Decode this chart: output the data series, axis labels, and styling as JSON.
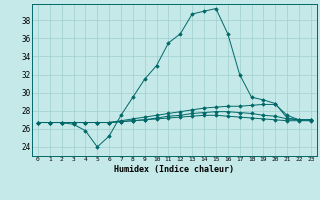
{
  "title": "",
  "xlabel": "Humidex (Indice chaleur)",
  "bg_color": "#c5e8e8",
  "grid_color": "#9fcfcf",
  "line_color": "#006868",
  "xlim": [
    -0.5,
    23.5
  ],
  "ylim": [
    23.0,
    39.8
  ],
  "yticks": [
    24,
    26,
    28,
    30,
    32,
    34,
    36,
    38
  ],
  "xticks": [
    0,
    1,
    2,
    3,
    4,
    5,
    6,
    7,
    8,
    9,
    10,
    11,
    12,
    13,
    14,
    15,
    16,
    17,
    18,
    19,
    20,
    21,
    22,
    23
  ],
  "series": [
    [
      26.7,
      26.7,
      26.7,
      26.5,
      25.8,
      24.0,
      25.2,
      27.5,
      29.5,
      31.5,
      33.0,
      35.5,
      36.5,
      38.7,
      39.0,
      39.3,
      36.5,
      32.0,
      29.5,
      29.2,
      28.8,
      27.2,
      27.0,
      27.0
    ],
    [
      26.7,
      26.7,
      26.7,
      26.7,
      26.7,
      26.7,
      26.7,
      26.9,
      27.1,
      27.3,
      27.5,
      27.7,
      27.9,
      28.1,
      28.3,
      28.4,
      28.5,
      28.5,
      28.6,
      28.7,
      28.7,
      27.5,
      27.0,
      27.0
    ],
    [
      26.7,
      26.7,
      26.7,
      26.7,
      26.7,
      26.7,
      26.7,
      26.8,
      26.9,
      27.0,
      27.2,
      27.4,
      27.5,
      27.7,
      27.8,
      27.9,
      27.9,
      27.8,
      27.7,
      27.5,
      27.4,
      27.1,
      27.0,
      27.0
    ],
    [
      26.7,
      26.7,
      26.7,
      26.7,
      26.7,
      26.7,
      26.7,
      26.8,
      26.9,
      27.0,
      27.1,
      27.2,
      27.3,
      27.4,
      27.5,
      27.5,
      27.4,
      27.3,
      27.2,
      27.1,
      27.0,
      26.9,
      26.9,
      26.9
    ]
  ]
}
